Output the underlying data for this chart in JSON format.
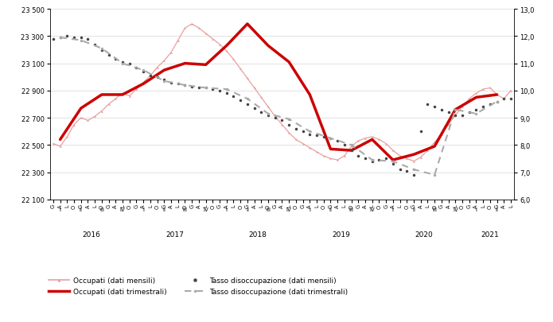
{
  "ylim_left": [
    22100,
    23500
  ],
  "ylim_right": [
    6.0,
    13.0
  ],
  "yticks_left": [
    22100,
    22300,
    22500,
    22700,
    22900,
    23100,
    23300,
    23500
  ],
  "yticks_right": [
    6.0,
    7.0,
    8.0,
    9.0,
    10.0,
    11.0,
    12.0,
    13.0
  ],
  "color_monthly_occ": "#e8a0a0",
  "color_quarterly_occ": "#cc0000",
  "color_monthly_tasso": "#444444",
  "color_quarterly_tasso": "#aaaaaa",
  "background_color": "#ffffff",
  "occ_monthly": [
    22510,
    22490,
    22560,
    22650,
    22700,
    22680,
    22710,
    22750,
    22800,
    22840,
    22880,
    22860,
    22910,
    22960,
    23010,
    23070,
    23120,
    23180,
    23270,
    23360,
    23390,
    23360,
    23320,
    23280,
    23240,
    23190,
    23130,
    23060,
    22990,
    22920,
    22850,
    22780,
    22710,
    22650,
    22590,
    22540,
    22510,
    22480,
    22450,
    22420,
    22400,
    22390,
    22420,
    22490,
    22530,
    22550,
    22560,
    22540,
    22510,
    22460,
    22420,
    22400,
    22380,
    22410,
    22460,
    22520,
    22580,
    22650,
    22720,
    22780,
    22840,
    22880,
    22910,
    22920,
    22870,
    22840,
    22900
  ],
  "occ_quarterly": [
    22540,
    22770,
    22870,
    22870,
    22950,
    23050,
    23100,
    23090,
    23230,
    23390,
    23230,
    23110,
    22870,
    22470,
    22460,
    22540,
    22390,
    22430,
    22490,
    22760,
    22850,
    22870
  ],
  "tasso_monthly": [
    11.9,
    11.95,
    12.0,
    11.95,
    11.95,
    11.9,
    11.7,
    11.5,
    11.3,
    11.15,
    11.05,
    11.0,
    10.85,
    10.7,
    10.55,
    10.5,
    10.4,
    10.3,
    10.25,
    10.2,
    10.15,
    10.1,
    10.1,
    10.05,
    10.0,
    9.9,
    9.8,
    9.65,
    9.5,
    9.35,
    9.2,
    9.1,
    9.0,
    8.9,
    8.75,
    8.6,
    8.5,
    8.4,
    8.35,
    8.3,
    8.25,
    8.15,
    8.0,
    7.8,
    7.6,
    7.5,
    7.4,
    7.45,
    7.5,
    7.3,
    7.1,
    7.05,
    6.9,
    8.5,
    9.5,
    9.4,
    9.3,
    9.2,
    9.1,
    9.1,
    9.2,
    9.3,
    9.4,
    9.5,
    9.6,
    9.7,
    9.7
  ],
  "tasso_quarterly": [
    11.95,
    11.85,
    11.55,
    11.0,
    10.75,
    10.35,
    10.2,
    10.1,
    10.05,
    9.7,
    9.15,
    8.95,
    8.5,
    8.25,
    8.0,
    7.45,
    7.4,
    7.1,
    6.9,
    9.3,
    9.15,
    9.6
  ],
  "month_abbr": [
    "G",
    "A",
    "L",
    "O"
  ],
  "quarter_abbr": [
    "I",
    "II",
    "III",
    "IV"
  ],
  "years": [
    "2016",
    "2017",
    "2018",
    "2019",
    "2020",
    "2021"
  ],
  "n_months": 67
}
